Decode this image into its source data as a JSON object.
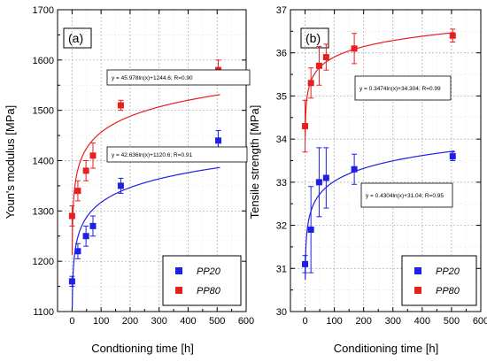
{
  "chart_data": [
    {
      "type": "scatter",
      "panel_label": "(a)",
      "xlabel": "Condtioning time [h]",
      "ylabel": "Youn's modulus [MPa]",
      "xlim": [
        -50,
        600
      ],
      "ylim": [
        1100,
        1700
      ],
      "xticks": [
        0,
        100,
        200,
        300,
        400,
        500,
        600
      ],
      "yticks": [
        1100,
        1200,
        1300,
        1400,
        1500,
        1600,
        1700
      ],
      "grid": true,
      "legend_position": "bottom-right",
      "series": [
        {
          "name": "PP20",
          "color": "#1f1fe6",
          "x": [
            0,
            20,
            48,
            72,
            168,
            504
          ],
          "y": [
            1160,
            1220,
            1250,
            1270,
            1350,
            1440
          ],
          "err": [
            10,
            15,
            20,
            20,
            15,
            20
          ],
          "fit": {
            "label": "y = 42.636ln(x)+1120.6; R=0.91",
            "a": 42.636,
            "b": 1120.6
          }
        },
        {
          "name": "PP80",
          "color": "#e61f1f",
          "x": [
            0,
            20,
            48,
            72,
            168,
            504
          ],
          "y": [
            1290,
            1340,
            1380,
            1410,
            1510,
            1580
          ],
          "err": [
            20,
            20,
            20,
            25,
            10,
            20
          ],
          "fit": {
            "label": "y = 45.978ln(x)+1244.6; R=0.90",
            "a": 45.978,
            "b": 1244.6
          }
        }
      ]
    },
    {
      "type": "scatter",
      "panel_label": "(b)",
      "xlabel": "Conditioning time [h]",
      "ylabel": "Tensile strength [MPa]",
      "xlim": [
        -50,
        600
      ],
      "ylim": [
        30,
        37
      ],
      "xticks": [
        0,
        100,
        200,
        300,
        400,
        500,
        600
      ],
      "yticks": [
        30,
        31,
        32,
        33,
        34,
        35,
        36,
        37
      ],
      "grid": true,
      "legend_position": "bottom-right",
      "series": [
        {
          "name": "PP20",
          "color": "#1f1fe6",
          "x": [
            0,
            20,
            48,
            72,
            168,
            504
          ],
          "y": [
            31.1,
            31.9,
            33.0,
            33.1,
            33.3,
            33.6
          ],
          "err": [
            0.2,
            1.0,
            0.8,
            0.7,
            0.35,
            0.1
          ],
          "fit": {
            "label": "y = 0.4304ln(x)+31.04; R=0.95",
            "a": 0.4304,
            "b": 31.04
          }
        },
        {
          "name": "PP80",
          "color": "#e61f1f",
          "x": [
            0,
            20,
            48,
            72,
            168,
            504
          ],
          "y": [
            34.3,
            35.3,
            35.7,
            35.9,
            36.1,
            36.4
          ],
          "err": [
            0.6,
            0.35,
            0.45,
            0.3,
            0.35,
            0.15
          ],
          "fit": {
            "label": "y = 0.3474ln(x)+34.304; R=0.99",
            "a": 0.3474,
            "b": 34.304
          }
        }
      ]
    }
  ]
}
